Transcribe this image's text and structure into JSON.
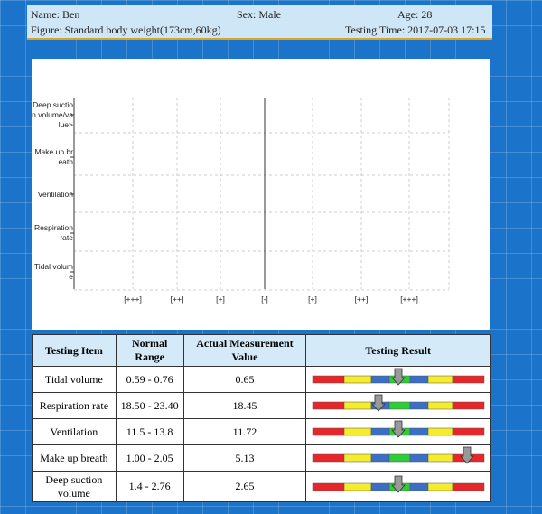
{
  "header": {
    "name": "Name: Ben",
    "sex": "Sex: Male",
    "age": "Age: 28",
    "figure": "Figure: Standard body weight(173cm,60kg)",
    "testing_time": "Testing Time: 2017-07-03 17:15"
  },
  "chart": {
    "row_labels": [
      "Deep suction volume/value>",
      "Make up breath",
      "Ventilation",
      "Respiration rate",
      "Tidal volume"
    ],
    "x_labels": [
      "[+++]",
      "[++]",
      "[+]",
      "[-]",
      "[+]",
      "[++]",
      "[+++]"
    ]
  },
  "table": {
    "headers": [
      "Testing Item",
      "Normal Range",
      "Actual Measurement Value",
      "Testing Result"
    ],
    "rows": [
      [
        "Tidal volume",
        "0.59 - 0.76",
        "0.65"
      ],
      [
        "Respiration rate",
        "18.50 - 23.40",
        "18.45"
      ],
      [
        "Ventilation",
        "11.5 - 13.8",
        "11.72"
      ],
      [
        "Make up breath",
        "1.00 - 2.05",
        "5.13"
      ],
      [
        "Deep suction volume",
        "1.4 - 2.76",
        "2.65"
      ]
    ]
  }
}
